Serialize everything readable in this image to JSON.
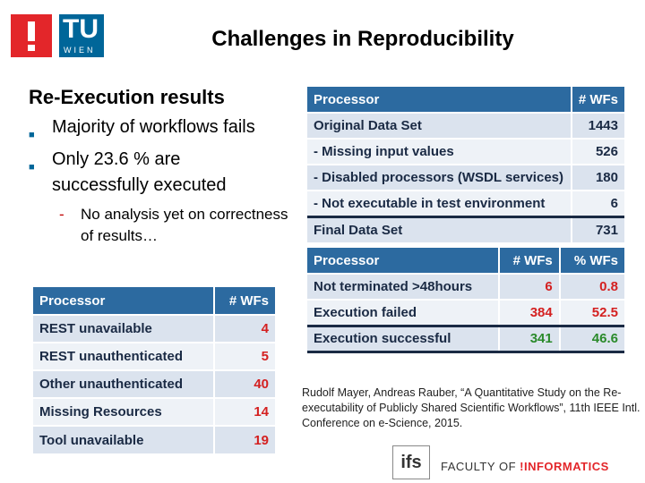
{
  "logos": {
    "tu_text": "TU",
    "wien_text": "WIEN",
    "ifs_text": "ifs"
  },
  "title": "Challenges in Reproducibility",
  "heading": "Re-Execution results",
  "bullets": [
    "Majority of workflows fails",
    "Only 23.6 % are",
    "successfully executed"
  ],
  "sub_bullet": "No analysis yet on correctness of results…",
  "table1": {
    "headers": [
      "Processor",
      "# WFs"
    ],
    "rows": [
      [
        "Original Data Set",
        "1443"
      ],
      [
        "- Missing input values",
        "526"
      ],
      [
        "- Disabled processors (WSDL services)",
        "180"
      ],
      [
        "- Not executable in test environment",
        "6"
      ],
      [
        "Final Data Set",
        "731"
      ]
    ]
  },
  "table2": {
    "headers": [
      "Processor",
      "# WFs",
      "% WFs"
    ],
    "rows": [
      [
        "Not terminated >48hours",
        "6",
        "0.8"
      ],
      [
        "Execution failed",
        "384",
        "52.5"
      ],
      [
        "Execution successful",
        "341",
        "46.6"
      ]
    ]
  },
  "table3": {
    "headers": [
      "Processor",
      "# WFs"
    ],
    "rows": [
      [
        "REST unavailable",
        "4"
      ],
      [
        "REST unauthenticated",
        "5"
      ],
      [
        "Other unauthenticated",
        "40"
      ],
      [
        "Missing Resources",
        "14"
      ],
      [
        "Tool unavailable",
        "19"
      ]
    ]
  },
  "citation": "Rudolf Mayer, Andreas Rauber, “A Quantitative Study on the Re-executability of Publicly Shared Scientific Workflows”, 11th IEEE Intl. Conference on e-Science, 2015.",
  "footer": {
    "faculty": "FACULTY",
    "of": "OF",
    "informatics": "!INFORMATICS"
  },
  "colors": {
    "header_bg": "#2c6aa0",
    "accent_red": "#e3262a",
    "tu_blue": "#006699"
  }
}
